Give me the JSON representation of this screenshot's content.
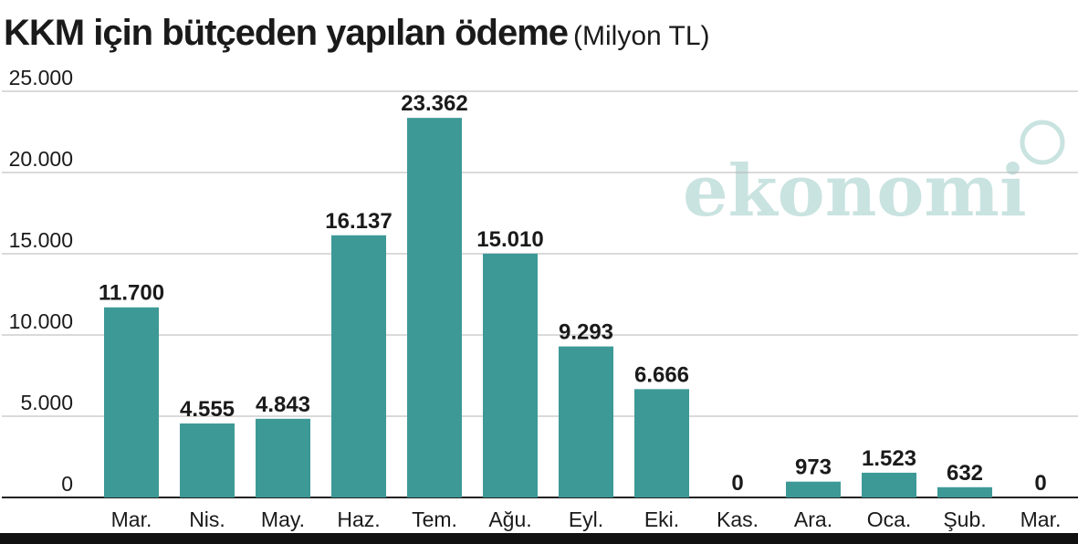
{
  "chart_data": {
    "type": "bar",
    "title": "KKM için bütçeden yapılan ödeme",
    "subtitle": "(Milyon TL)",
    "categories": [
      "Mar.",
      "Nis.",
      "May.",
      "Haz.",
      "Tem.",
      "Ağu.",
      "Eyl.",
      "Eki.",
      "Kas.",
      "Ara.",
      "Oca.",
      "Şub.",
      "Mar."
    ],
    "values": [
      11700,
      4555,
      4843,
      16137,
      23362,
      15010,
      9293,
      6666,
      0,
      973,
      1523,
      632,
      0
    ],
    "value_labels": [
      "11.700",
      "4.555",
      "4.843",
      "16.137",
      "23.362",
      "15.010",
      "9.293",
      "6.666",
      "0",
      "973",
      "1.523",
      "632",
      "0"
    ],
    "yticks": [
      0,
      5000,
      10000,
      15000,
      20000,
      25000
    ],
    "ytick_labels": [
      "0",
      "5.000",
      "10.000",
      "15.000",
      "20.000",
      "25.000"
    ],
    "ylim": [
      0,
      25000
    ],
    "grid": "horizontal",
    "bar_color": "#3d9996",
    "watermark": "ekonomi"
  }
}
